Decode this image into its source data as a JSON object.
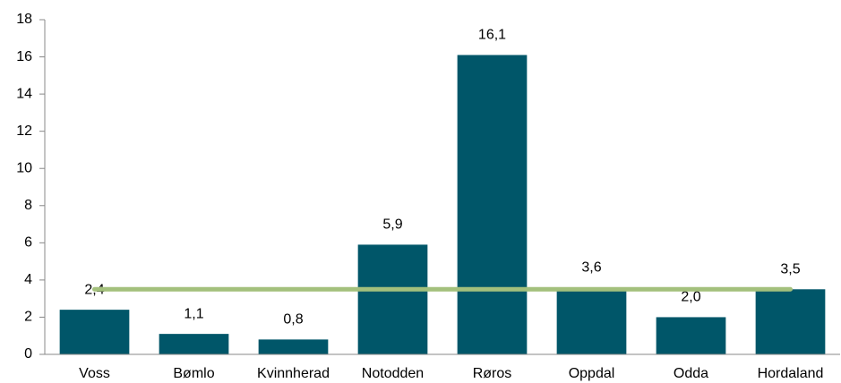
{
  "chart_data": {
    "type": "bar",
    "categories": [
      "Voss",
      "Bømlo",
      "Kvinnherad",
      "Notodden",
      "Røros",
      "Oppdal",
      "Odda",
      "Hordaland"
    ],
    "series": [
      {
        "type": "bar",
        "color": "#005669",
        "values": [
          2.4,
          1.1,
          0.8,
          5.9,
          16.1,
          3.6,
          2.0,
          3.5
        ],
        "value_labels": [
          "2,4",
          "1,1",
          "0,8",
          "5,9",
          "16,1",
          "3,6",
          "2,0",
          "3,5"
        ]
      },
      {
        "type": "line",
        "color": "#a3c07c",
        "values": [
          3.5,
          3.5,
          3.5,
          3.5,
          3.5,
          3.5,
          3.5,
          3.5
        ]
      }
    ],
    "ylim": [
      0,
      18
    ],
    "yticks": [
      0,
      2,
      4,
      6,
      8,
      10,
      12,
      14,
      16,
      18
    ],
    "grid": false
  }
}
